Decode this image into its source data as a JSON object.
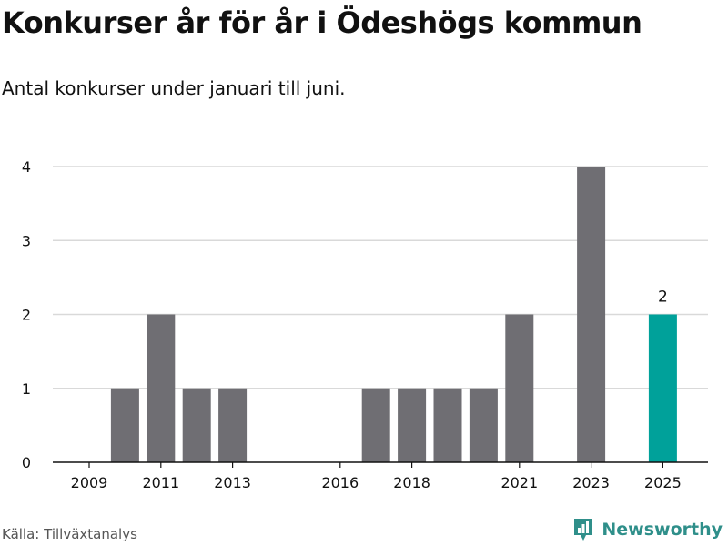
{
  "title": "Konkurser år för år i Ödeshögs kommun",
  "subtitle": "Antal konkurser under januari till juni.",
  "source": "Källa: Tillväxtanalys",
  "brand": {
    "name": "Newsworthy",
    "icon": "bar-chart-logo-icon",
    "color": "#2f8f8a"
  },
  "colors": {
    "bar": "#6f6e73",
    "highlight": "#00a19a",
    "grid": "#d9d9d9",
    "axis": "#111111"
  },
  "chart_data": {
    "type": "bar",
    "categories": [
      "2009",
      "2010",
      "2011",
      "2012",
      "2013",
      "2014",
      "2015",
      "2016",
      "2017",
      "2018",
      "2019",
      "2020",
      "2021",
      "2022",
      "2023",
      "2024",
      "2025"
    ],
    "values": [
      0,
      1,
      2,
      1,
      1,
      0,
      0,
      0,
      1,
      1,
      1,
      1,
      2,
      0,
      4,
      0,
      2
    ],
    "highlight_category": "2025",
    "data_labels": [
      {
        "category": "2025",
        "label": "2"
      }
    ],
    "x_tick_labels": [
      "2009",
      "2011",
      "2013",
      "2016",
      "2018",
      "2021",
      "2023",
      "2025"
    ],
    "y_ticks": [
      "0",
      "1",
      "2",
      "3",
      "4"
    ],
    "ylim": [
      0,
      4
    ],
    "grid": true,
    "xlabel": "",
    "ylabel": ""
  }
}
